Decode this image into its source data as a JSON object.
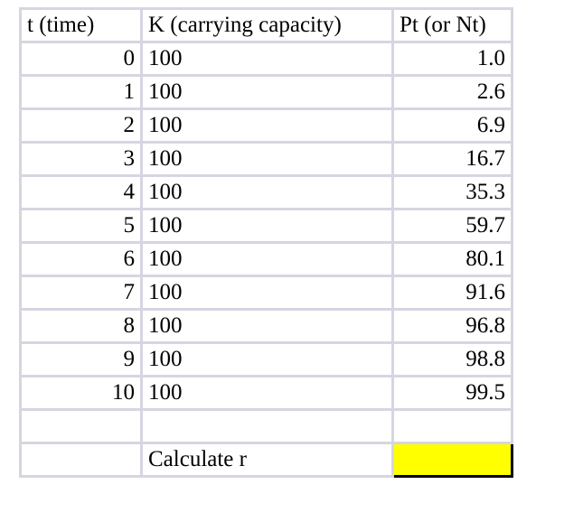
{
  "headers": {
    "t": "t (time)",
    "k": "K (carrying capacity)",
    "p": "Pt (or Nt)"
  },
  "rows": [
    {
      "t": "0",
      "k": "100",
      "p": "1.0"
    },
    {
      "t": "1",
      "k": "100",
      "p": "2.6"
    },
    {
      "t": "2",
      "k": "100",
      "p": "6.9"
    },
    {
      "t": "3",
      "k": "100",
      "p": "16.7"
    },
    {
      "t": "4",
      "k": "100",
      "p": "35.3"
    },
    {
      "t": "5",
      "k": "100",
      "p": "59.7"
    },
    {
      "t": "6",
      "k": "100",
      "p": "80.1"
    },
    {
      "t": "7",
      "k": "100",
      "p": "91.6"
    },
    {
      "t": "8",
      "k": "100",
      "p": "96.8"
    },
    {
      "t": "9",
      "k": "100",
      "p": "98.8"
    },
    {
      "t": "10",
      "k": "100",
      "p": "99.5"
    }
  ],
  "calc": {
    "label": "Calculate r",
    "answer": "",
    "answer_fill": "#ffff00"
  }
}
